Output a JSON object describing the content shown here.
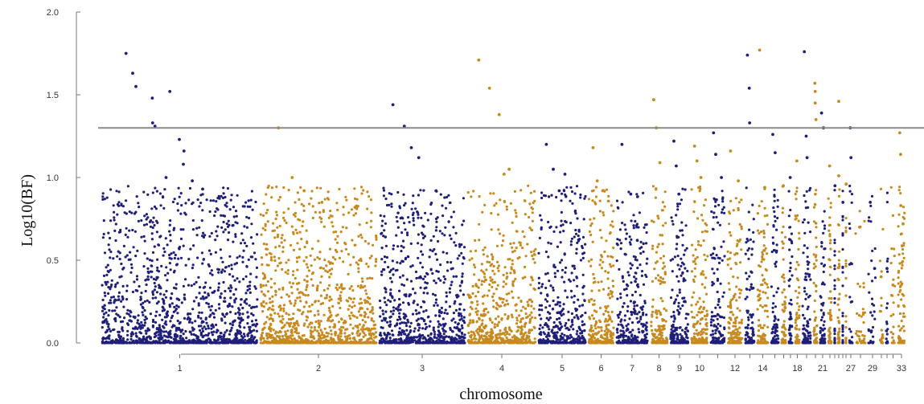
{
  "chart_data": {
    "type": "scatter",
    "title": "",
    "xlabel": "chromosome",
    "ylabel": "Log10(BF)",
    "ylim": [
      0,
      2.0
    ],
    "y_ticks": [
      "0.0",
      "0.5",
      "1.0",
      "1.5",
      "2.0"
    ],
    "grid": false,
    "threshold": 1.3,
    "colors": {
      "odd": "#1f1f7a",
      "even": "#c8891f",
      "threshold_line": "#8a8a8a"
    },
    "chromosome_labels": [
      "1",
      "2",
      "3",
      "4",
      "5",
      "6",
      "7",
      "8",
      "9",
      "10",
      "12",
      "14",
      "18",
      "21",
      "27",
      "29",
      "33"
    ],
    "chromosomes": [
      {
        "name": "1",
        "color": "odd",
        "labeled": true,
        "top_points": [
          1.75,
          1.63,
          1.55,
          1.48,
          1.33,
          1.52,
          1.31,
          1.23,
          1.16,
          1.08,
          1.0,
          0.98,
          0.93
        ]
      },
      {
        "name": "2",
        "color": "even",
        "labeled": true,
        "top_points": [
          1.3,
          1.0,
          0.92,
          0.85,
          0.82
        ]
      },
      {
        "name": "3",
        "color": "odd",
        "labeled": true,
        "top_points": [
          1.44,
          1.31,
          1.18,
          1.12,
          0.92
        ]
      },
      {
        "name": "4",
        "color": "even",
        "labeled": true,
        "top_points": [
          1.71,
          1.54,
          1.38,
          1.05,
          1.02
        ]
      },
      {
        "name": "5",
        "color": "odd",
        "labeled": true,
        "top_points": [
          1.2,
          1.05,
          1.02,
          0.92
        ]
      },
      {
        "name": "6",
        "color": "even",
        "labeled": true,
        "top_points": [
          1.18,
          0.98,
          0.92
        ]
      },
      {
        "name": "7",
        "color": "odd",
        "labeled": true,
        "top_points": [
          1.2,
          0.9,
          0.62
        ]
      },
      {
        "name": "8",
        "color": "even",
        "labeled": true,
        "top_points": [
          1.47,
          1.3,
          1.09
        ]
      },
      {
        "name": "9",
        "color": "odd",
        "labeled": true,
        "top_points": [
          1.22,
          1.07,
          0.9
        ]
      },
      {
        "name": "10",
        "color": "even",
        "labeled": true,
        "top_points": [
          1.19,
          1.1,
          1.0
        ]
      },
      {
        "name": "11",
        "color": "odd",
        "labeled": false,
        "top_points": [
          1.27,
          1.14,
          1.0
        ]
      },
      {
        "name": "12",
        "color": "even",
        "labeled": true,
        "top_points": [
          1.16,
          0.98
        ]
      },
      {
        "name": "13",
        "color": "odd",
        "labeled": false,
        "top_points": [
          1.74,
          1.54,
          1.33
        ]
      },
      {
        "name": "14",
        "color": "even",
        "labeled": true,
        "top_points": [
          1.77,
          0.94
        ]
      },
      {
        "name": "15",
        "color": "odd",
        "labeled": false,
        "top_points": [
          1.26,
          1.15
        ]
      },
      {
        "name": "16",
        "color": "even",
        "labeled": false,
        "top_points": [
          0.95
        ]
      },
      {
        "name": "17",
        "color": "odd",
        "labeled": false,
        "top_points": [
          1.0
        ]
      },
      {
        "name": "18",
        "color": "even",
        "labeled": true,
        "top_points": [
          1.1
        ]
      },
      {
        "name": "19",
        "color": "odd",
        "labeled": false,
        "top_points": [
          1.76,
          1.25,
          1.12
        ]
      },
      {
        "name": "20",
        "color": "even",
        "labeled": false,
        "top_points": [
          1.57,
          1.52,
          1.45,
          1.35
        ]
      },
      {
        "name": "21",
        "color": "odd",
        "labeled": true,
        "top_points": [
          1.39,
          1.3
        ]
      },
      {
        "name": "22",
        "color": "even",
        "labeled": false,
        "top_points": [
          1.07
        ]
      },
      {
        "name": "23",
        "color": "odd",
        "labeled": false,
        "top_points": [
          0.95
        ]
      },
      {
        "name": "24",
        "color": "even",
        "labeled": false,
        "top_points": [
          1.46,
          1.01
        ]
      },
      {
        "name": "25",
        "color": "odd",
        "labeled": false,
        "top_points": [
          0.85
        ]
      },
      {
        "name": "26",
        "color": "even",
        "labeled": false,
        "top_points": [
          0.96
        ]
      },
      {
        "name": "27",
        "color": "odd",
        "labeled": true,
        "top_points": [
          1.3,
          1.12
        ]
      },
      {
        "name": "28",
        "color": "even",
        "labeled": false,
        "top_points": [
          0.7
        ]
      },
      {
        "name": "29",
        "color": "odd",
        "labeled": true,
        "top_points": [
          0.85,
          0.45
        ]
      },
      {
        "name": "30",
        "color": "even",
        "labeled": false,
        "top_points": [
          0.4
        ]
      },
      {
        "name": "31",
        "color": "odd",
        "labeled": false,
        "top_points": [
          0.45
        ]
      },
      {
        "name": "32",
        "color": "even",
        "labeled": false,
        "top_points": [
          0.35
        ]
      },
      {
        "name": "33",
        "color": "even",
        "labeled": true,
        "top_points": [
          1.27,
          1.14,
          0.83,
          0.72
        ]
      }
    ]
  }
}
